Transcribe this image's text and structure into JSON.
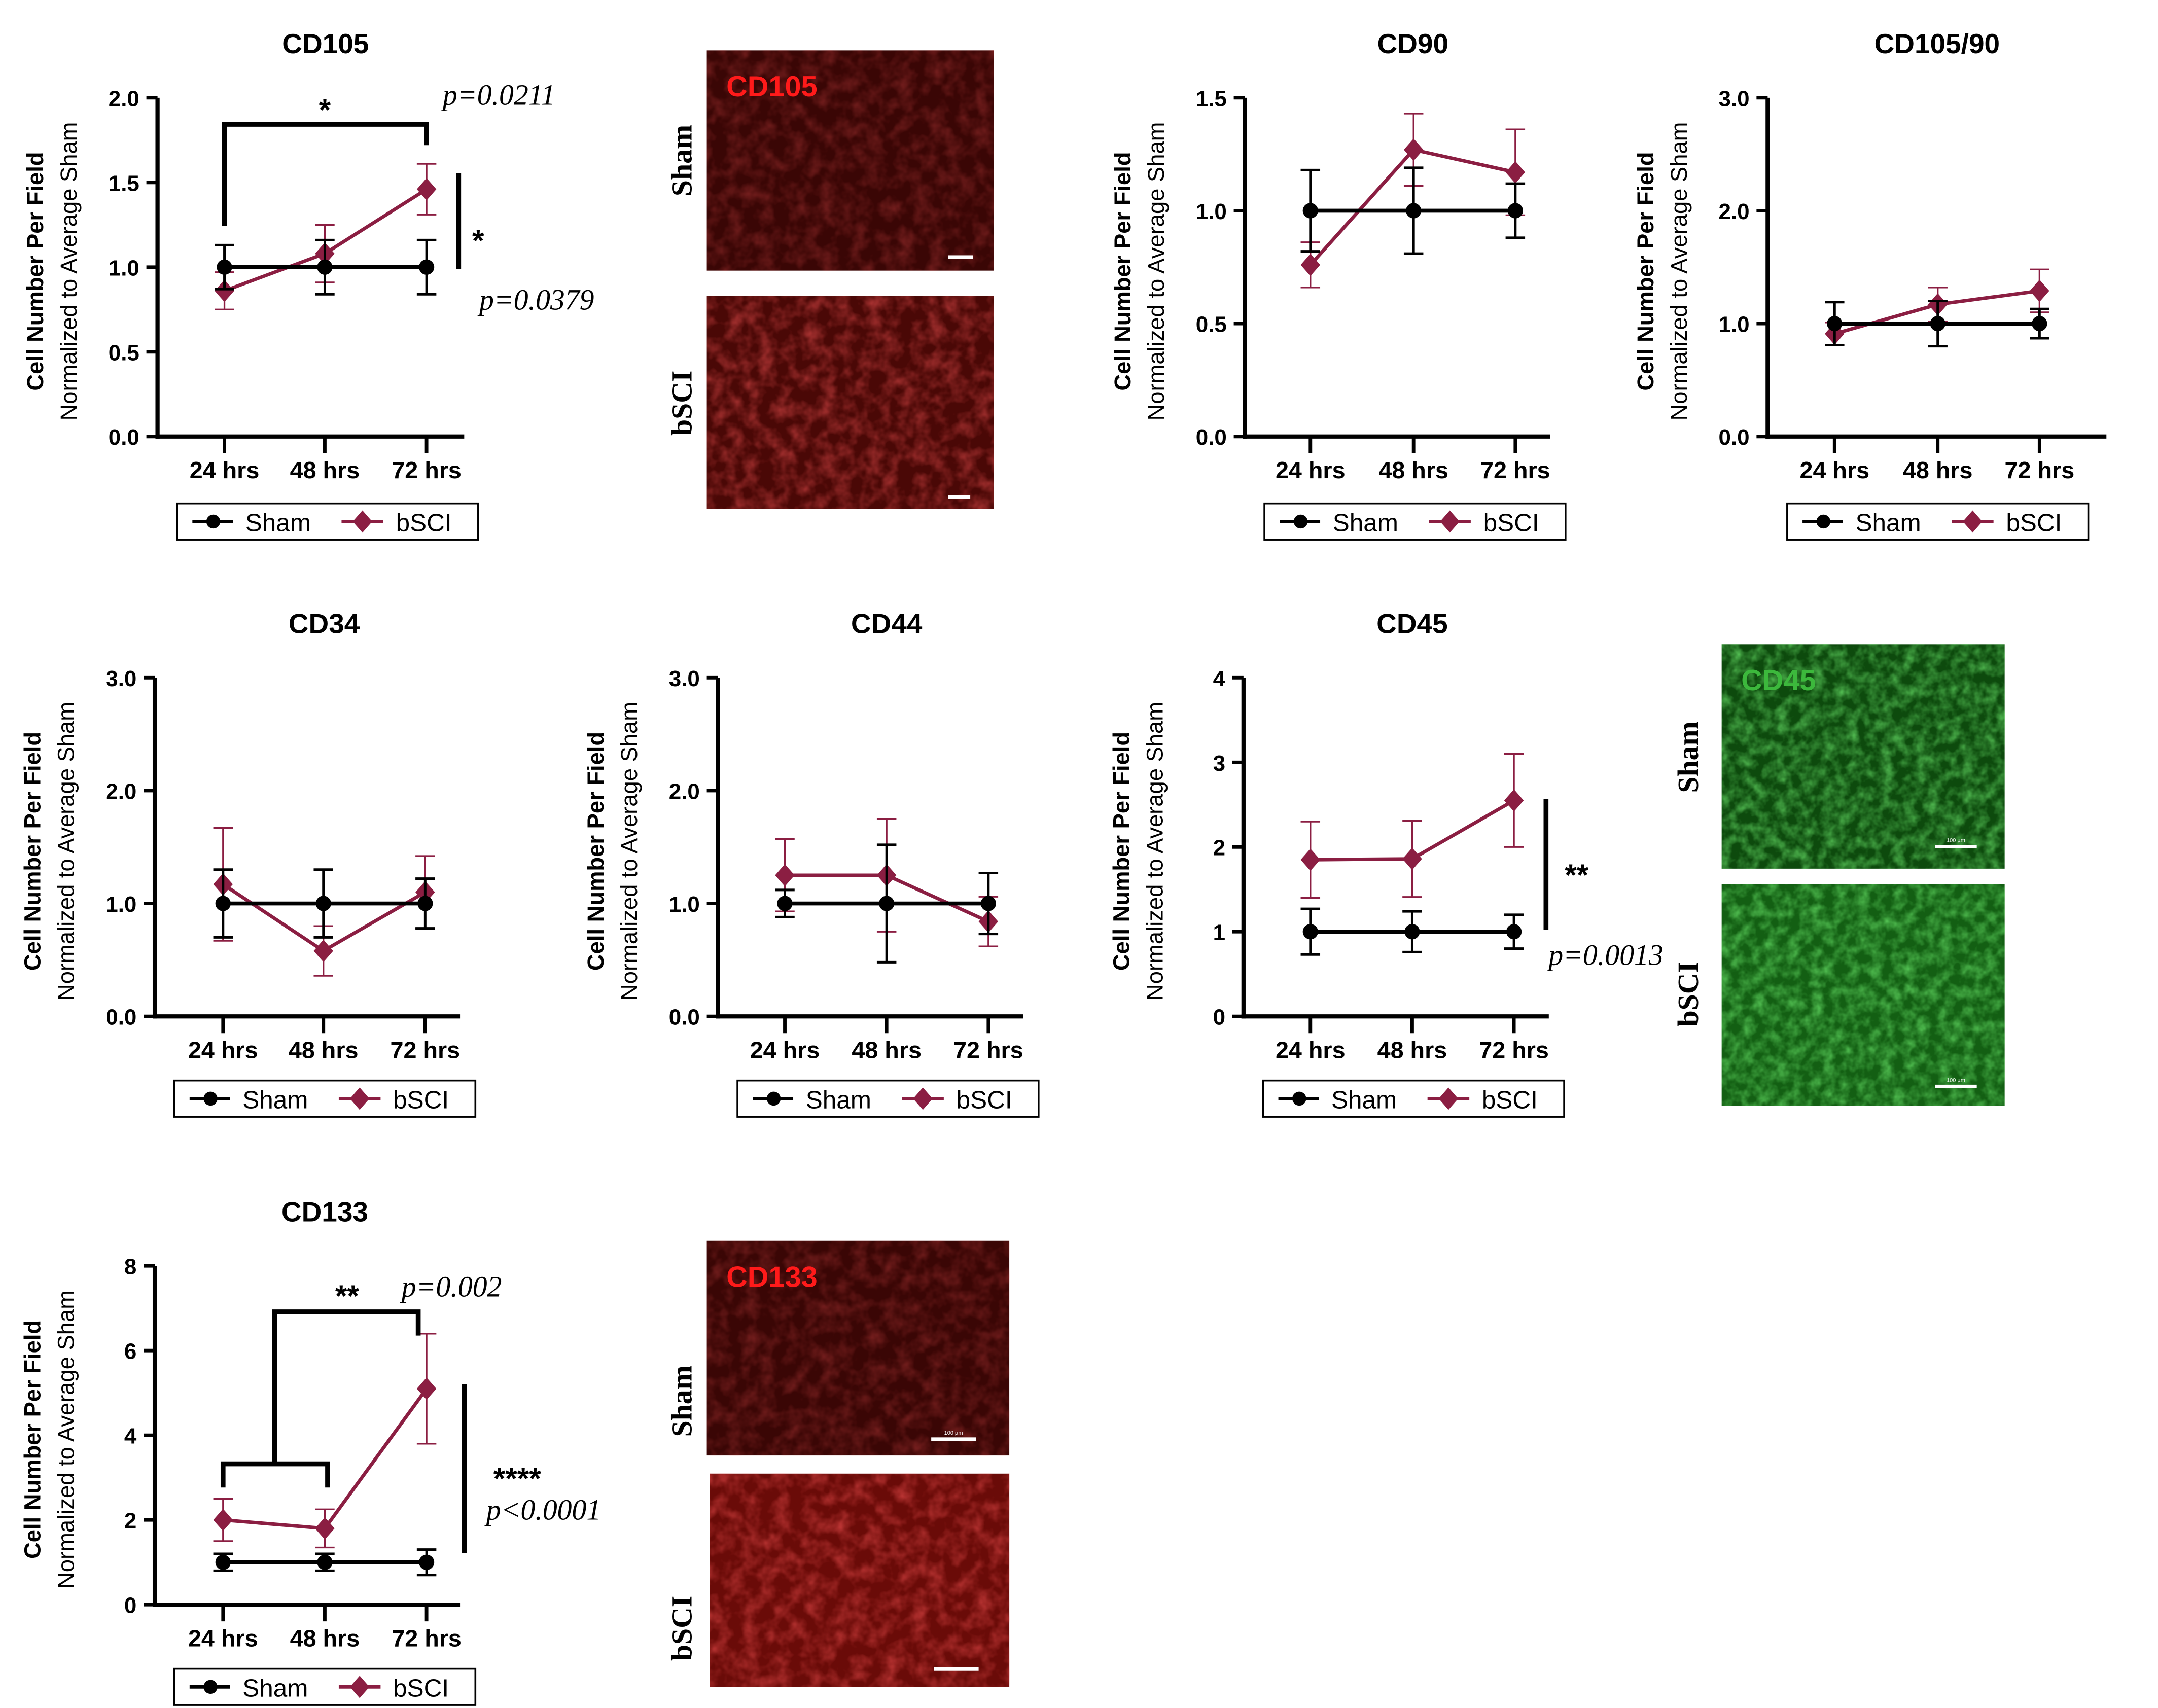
{
  "colors": {
    "sham": "#000000",
    "bscI": "#8B1E42",
    "red_stain": "#ff1a1a",
    "green_stain": "#3cb83c"
  },
  "common": {
    "ylabel_line1": "Cell Number Per Field",
    "ylabel_line2": "Normalized to Average Sham",
    "legend": [
      "Sham",
      "bSCI"
    ]
  },
  "chart_data": [
    {
      "type": "line",
      "title": "CD105",
      "categories": [
        "24 hrs",
        "48 hrs",
        "72 hrs"
      ],
      "ylim": [
        0,
        2.0
      ],
      "yticks": [
        "0.0",
        "0.5",
        "1.0",
        "1.5",
        "2.0"
      ],
      "ytick_values": [
        0,
        0.5,
        1,
        1.5,
        2
      ],
      "series": [
        {
          "name": "Sham",
          "marker": "circle",
          "values": [
            1,
            1,
            1
          ],
          "errors": [
            0.13,
            0.16,
            0.16
          ]
        },
        {
          "name": "bSCI",
          "marker": "diamond",
          "values": [
            0.86,
            1.08,
            1.46
          ],
          "errors": [
            0.11,
            0.17,
            0.15
          ]
        }
      ],
      "annotations": [
        {
          "text": "*",
          "p": "p=0.0211",
          "type": "bracket 24 hrs vs 72 hrs"
        },
        {
          "text": "*",
          "p": "p=0.0379",
          "type": "vertical 72 hrs Sham vs bSCI"
        }
      ]
    },
    {
      "type": "line",
      "title": "CD90",
      "categories": [
        "24 hrs",
        "48 hrs",
        "72 hrs"
      ],
      "ylim": [
        0,
        1.5
      ],
      "yticks": [
        "0.0",
        "0.5",
        "1.0",
        "1.5"
      ],
      "ytick_values": [
        0,
        0.5,
        1,
        1.5
      ],
      "series": [
        {
          "name": "Sham",
          "marker": "circle",
          "values": [
            1,
            1,
            1
          ],
          "errors": [
            0.18,
            0.19,
            0.12
          ]
        },
        {
          "name": "bSCI",
          "marker": "diamond",
          "values": [
            0.76,
            1.27,
            1.17
          ],
          "errors": [
            0.1,
            0.16,
            0.19
          ]
        }
      ],
      "annotations": []
    },
    {
      "type": "line",
      "title": "CD105/90",
      "categories": [
        "24 hrs",
        "48 hrs",
        "72 hrs"
      ],
      "ylim": [
        0,
        3.0
      ],
      "yticks": [
        "0.0",
        "1.0",
        "2.0",
        "3.0"
      ],
      "ytick_values": [
        0,
        1,
        2,
        3
      ],
      "series": [
        {
          "name": "Sham",
          "marker": "circle",
          "values": [
            1,
            1,
            1
          ],
          "errors": [
            0.19,
            0.2,
            0.13
          ]
        },
        {
          "name": "bSCI",
          "marker": "diamond",
          "values": [
            0.91,
            1.17,
            1.29
          ],
          "errors": [
            0.1,
            0.15,
            0.19
          ]
        }
      ],
      "annotations": []
    },
    {
      "type": "line",
      "title": "CD34",
      "categories": [
        "24 hrs",
        "48 hrs",
        "72 hrs"
      ],
      "ylim": [
        0,
        3.0
      ],
      "yticks": [
        "0.0",
        "1.0",
        "2.0",
        "3.0"
      ],
      "ytick_values": [
        0,
        1,
        2,
        3
      ],
      "series": [
        {
          "name": "Sham",
          "marker": "circle",
          "values": [
            1,
            1,
            1
          ],
          "errors": [
            0.3,
            0.3,
            0.22
          ]
        },
        {
          "name": "bSCI",
          "marker": "diamond",
          "values": [
            1.17,
            0.58,
            1.1
          ],
          "errors": [
            0.5,
            0.22,
            0.32
          ]
        }
      ],
      "annotations": []
    },
    {
      "type": "line",
      "title": "CD44",
      "categories": [
        "24 hrs",
        "48 hrs",
        "72 hrs"
      ],
      "ylim": [
        0,
        3.0
      ],
      "yticks": [
        "0.0",
        "1.0",
        "2.0",
        "3.0"
      ],
      "ytick_values": [
        0,
        1,
        2,
        3
      ],
      "series": [
        {
          "name": "Sham",
          "marker": "circle",
          "values": [
            1,
            1,
            1
          ],
          "errors": [
            0.12,
            0.52,
            0.27
          ]
        },
        {
          "name": "bSCI",
          "marker": "diamond",
          "values": [
            1.25,
            1.25,
            0.84
          ],
          "errors": [
            0.32,
            0.5,
            0.22
          ]
        }
      ],
      "annotations": []
    },
    {
      "type": "line",
      "title": "CD45",
      "categories": [
        "24 hrs",
        "48 hrs",
        "72 hrs"
      ],
      "ylim": [
        0,
        4
      ],
      "yticks": [
        "0",
        "1",
        "2",
        "3",
        "4"
      ],
      "ytick_values": [
        0,
        1,
        2,
        3,
        4
      ],
      "series": [
        {
          "name": "Sham",
          "marker": "circle",
          "values": [
            1,
            1,
            1
          ],
          "errors": [
            0.27,
            0.24,
            0.2
          ]
        },
        {
          "name": "bSCI",
          "marker": "diamond",
          "values": [
            1.85,
            1.86,
            2.55
          ],
          "errors": [
            0.45,
            0.45,
            0.55
          ]
        }
      ],
      "annotations": [
        {
          "text": "**",
          "p": "p=0.0013",
          "type": "vertical Sham vs bSCI"
        }
      ]
    },
    {
      "type": "line",
      "title": "CD133",
      "categories": [
        "24 hrs",
        "48 hrs",
        "72 hrs"
      ],
      "ylim": [
        0,
        8
      ],
      "yticks": [
        "0",
        "2",
        "4",
        "6",
        "8"
      ],
      "ytick_values": [
        0,
        2,
        4,
        6,
        8
      ],
      "series": [
        {
          "name": "Sham",
          "marker": "circle",
          "values": [
            1,
            1,
            1
          ],
          "errors": [
            0.2,
            0.2,
            0.3
          ]
        },
        {
          "name": "bSCI",
          "marker": "diamond",
          "values": [
            2.0,
            1.8,
            5.1
          ],
          "errors": [
            0.5,
            0.45,
            1.3
          ]
        }
      ],
      "annotations": [
        {
          "text": "**",
          "p": "p=0.002",
          "type": "bracket 24-48 hrs vs 72 hrs"
        },
        {
          "text": "****",
          "p": "p<0.0001",
          "type": "vertical Sham vs bSCI"
        }
      ]
    }
  ],
  "images": [
    {
      "marker": "CD105",
      "stain": "red",
      "rows": [
        "Sham",
        "bSCI"
      ],
      "scale_text": [
        "",
        ""
      ]
    },
    {
      "marker": "CD45",
      "stain": "green",
      "rows": [
        "Sham",
        "bSCI"
      ],
      "scale_text": [
        "100 µm",
        "100 µm"
      ]
    },
    {
      "marker": "CD133",
      "stain": "red",
      "rows": [
        "Sham",
        "bSCI"
      ],
      "scale_text": [
        "100 µm",
        ""
      ]
    }
  ]
}
